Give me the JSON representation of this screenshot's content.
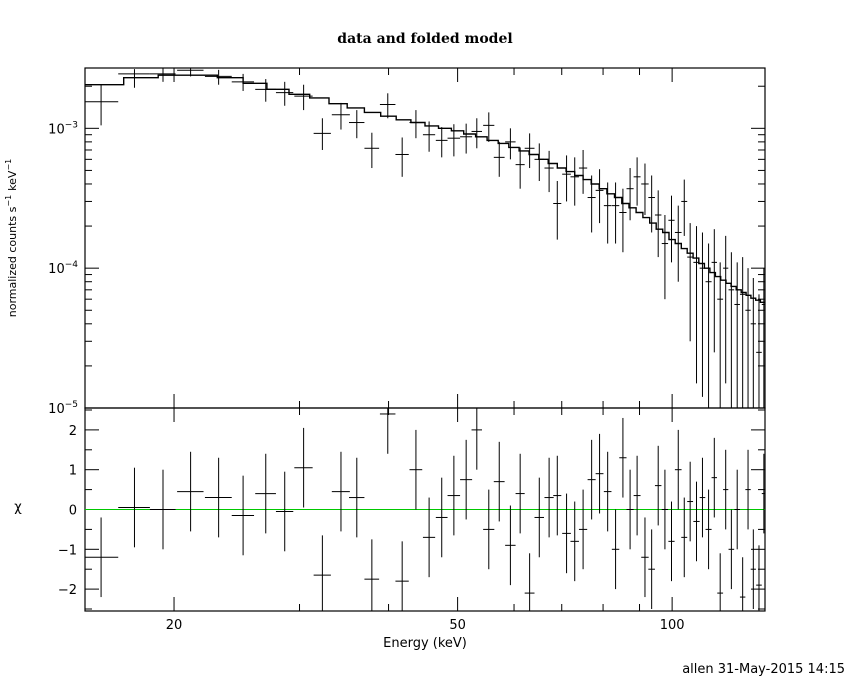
{
  "footer": "allen 31-May-2015 14:15",
  "colors": {
    "zero_line": "#00c800",
    "data": "#000000",
    "model": "#000000"
  },
  "chart_data": [
    {
      "type": "scatter",
      "title": "data and folded model",
      "xlabel": "",
      "ylabel": "normalized counts s",
      "ylabel_exponent": "−1",
      "ylabel_unit": "keV",
      "ylabel_unit_exponent": "−1",
      "xscale": "log",
      "yscale": "log",
      "xlim": [
        15.0,
        135.0
      ],
      "ylim": [
        1e-05,
        0.0027
      ],
      "y_ticks": [
        {
          "value": 0.001,
          "base": "10",
          "exp": "−3"
        },
        {
          "value": 0.0001,
          "base": "10",
          "exp": "−4"
        },
        {
          "value": 1e-05,
          "base": "10",
          "exp": "−5"
        }
      ],
      "series": [
        {
          "kind": "data",
          "x": [
            15.8,
            17.6,
            19.3,
            21.1,
            23.1,
            25.0,
            26.9,
            28.6,
            30.4,
            32.3,
            34.3,
            36.1,
            37.9,
            39.9,
            41.8,
            43.7,
            45.6,
            47.5,
            49.4,
            51.4,
            53.2,
            55.3,
            57.2,
            59.3,
            61.2,
            63.1,
            65.1,
            67.2,
            69.0,
            71.1,
            73.0,
            75.0,
            77.1,
            79.1,
            81.2,
            83.3,
            85.3,
            87.3,
            89.3,
            91.6,
            93.6,
            95.6,
            97.7,
            99.8,
            102.0,
            104.0,
            106.0,
            108.2,
            110.3,
            112.5,
            114.6,
            116.8,
            118.9,
            121.1,
            123.4,
            125.6,
            127.8,
            130.0,
            132.4,
            134.5
          ],
          "xerr": [
            0.9,
            0.9,
            0.8,
            0.9,
            1.0,
            0.9,
            0.9,
            0.8,
            0.9,
            0.9,
            1.0,
            0.9,
            0.9,
            1.0,
            0.9,
            0.9,
            0.9,
            0.9,
            1.0,
            1.0,
            0.9,
            1.0,
            1.0,
            1.0,
            0.9,
            1.0,
            1.0,
            1.0,
            0.9,
            1.0,
            1.0,
            1.0,
            1.0,
            1.0,
            1.0,
            1.0,
            1.0,
            1.0,
            1.0,
            1.1,
            1.0,
            1.0,
            1.0,
            1.0,
            1.1,
            1.0,
            1.0,
            1.1,
            1.0,
            1.1,
            1.0,
            1.1,
            1.0,
            1.1,
            1.1,
            1.1,
            1.1,
            1.1,
            1.2,
            0.9
          ],
          "y": [
            0.00155,
            0.00245,
            0.00245,
            0.0026,
            0.00235,
            0.00215,
            0.0019,
            0.0018,
            0.0017,
            0.00092,
            0.00125,
            0.0011,
            0.00072,
            0.00148,
            0.00065,
            0.0011,
            0.0009,
            0.00082,
            0.00085,
            0.00087,
            0.00095,
            0.00105,
            0.00062,
            0.0008,
            0.00055,
            0.00072,
            0.0006,
            0.00052,
            0.00029,
            0.00047,
            0.00045,
            0.00052,
            0.00032,
            0.00036,
            0.00028,
            0.00028,
            0.00025,
            0.00037,
            0.00045,
            0.0004,
            0.00032,
            0.00024,
            0.00015,
            0.00022,
            0.00018,
            0.0003,
            0.00012,
            0.00011,
            0.0001,
            8e-05,
            0.00011,
            6e-05,
            0.0001,
            7e-05,
            5.5e-05,
            6.5e-05,
            5e-05,
            4e-05,
            2.5e-05,
            5.5e-05
          ],
          "ylo": [
            0.00105,
            0.00195,
            0.00215,
            0.00235,
            0.00205,
            0.00185,
            0.00155,
            0.00145,
            0.00135,
            0.0007,
            0.00098,
            0.00085,
            0.00052,
            0.00118,
            0.00045,
            0.00085,
            0.00068,
            0.00062,
            0.00063,
            0.00066,
            0.00072,
            0.0008,
            0.00045,
            0.0006,
            0.00037,
            0.00052,
            0.00042,
            0.00035,
            0.00016,
            0.0003,
            0.00028,
            0.00034,
            0.00018,
            0.00021,
            0.00015,
            0.00015,
            0.00013,
            0.00022,
            0.00028,
            0.00024,
            0.00018,
            0.00012,
            6e-05,
            0.00011,
            8e-05,
            0.00017,
            3e-05,
            1.5e-05,
            1.2e-05,
            1e-05,
            2.5e-05,
            1e-05,
            1.5e-05,
            1e-05,
            1e-05,
            1e-05,
            1e-05,
            1e-05,
            1e-05,
            1e-05
          ],
          "yhi": [
            0.00205,
            0.00265,
            0.0027,
            0.0027,
            0.00262,
            0.00245,
            0.00225,
            0.00215,
            0.00205,
            0.00118,
            0.00152,
            0.00135,
            0.00093,
            0.00178,
            0.00086,
            0.00135,
            0.00112,
            0.00102,
            0.00107,
            0.00108,
            0.00118,
            0.0013,
            0.0008,
            0.001,
            0.00073,
            0.00092,
            0.00078,
            0.00069,
            0.00042,
            0.00064,
            0.00062,
            0.0007,
            0.00046,
            0.00051,
            0.00041,
            0.00041,
            0.00037,
            0.00052,
            0.00062,
            0.00056,
            0.00046,
            0.00036,
            0.00024,
            0.00033,
            0.00028,
            0.00043,
            0.00021,
            0.0002,
            0.00018,
            0.00015,
            0.00019,
            0.00011,
            0.00017,
            0.00013,
            0.00011,
            0.00012,
            0.0001,
            8.5e-05,
            6.5e-05,
            0.0001
          ]
        },
        {
          "kind": "model",
          "x": [
            15.0,
            17.0,
            19.0,
            21.0,
            23.0,
            25.0,
            27.0,
            29.0,
            31.0,
            33.0,
            35.0,
            37.0,
            39.0,
            41.0,
            43.0,
            45.0,
            47.0,
            49.0,
            51.0,
            53.0,
            55.0,
            57.0,
            59.0,
            61.0,
            63.0,
            65.0,
            67.0,
            69.0,
            71.0,
            73.0,
            75.0,
            77.0,
            79.0,
            81.0,
            83.0,
            85.0,
            87.0,
            89.0,
            91.0,
            93.0,
            95.0,
            97.0,
            99.0,
            101.0,
            103.0,
            105.0,
            107.0,
            109.0,
            111.0,
            113.0,
            115.0,
            117.0,
            119.0,
            121.0,
            123.0,
            125.0,
            127.0,
            129.0,
            131.0,
            133.0,
            135.0
          ],
          "y": [
            0.00205,
            0.0023,
            0.0024,
            0.0024,
            0.0023,
            0.0021,
            0.0019,
            0.00175,
            0.00165,
            0.0015,
            0.0014,
            0.0013,
            0.00122,
            0.00115,
            0.0011,
            0.00104,
            0.001,
            0.00096,
            0.00091,
            0.00087,
            0.00082,
            0.00078,
            0.00073,
            0.00069,
            0.00065,
            0.0006,
            0.00056,
            0.00052,
            0.00049,
            0.00046,
            0.00043,
            0.0004,
            0.00037,
            0.00034,
            0.00032,
            0.00029,
            0.00027,
            0.00025,
            0.00023,
            0.00021,
            0.00019,
            0.00018,
            0.00016,
            0.00015,
            0.000138,
            0.000128,
            0.000118,
            0.000108,
            0.0001,
            9.3e-05,
            8.7e-05,
            8.2e-05,
            7.8e-05,
            7.4e-05,
            7e-05,
            6.7e-05,
            6.4e-05,
            6.1e-05,
            5.9e-05,
            5.7e-05,
            5.5e-05
          ]
        }
      ]
    },
    {
      "type": "scatter",
      "title": "",
      "xlabel": "Energy (keV)",
      "ylabel": "χ",
      "xscale": "log",
      "xlim": [
        15.0,
        135.0
      ],
      "ylim": [
        -2.55,
        2.55
      ],
      "x_ticks": [
        {
          "value": 20,
          "label": "20"
        },
        {
          "value": 50,
          "label": "50"
        },
        {
          "value": 100,
          "label": "100"
        }
      ],
      "y_ticks": [
        {
          "value": 2,
          "label": "2"
        },
        {
          "value": 1,
          "label": "1"
        },
        {
          "value": 0,
          "label": "0"
        },
        {
          "value": -1,
          "label": "−1"
        },
        {
          "value": -2,
          "label": "−2"
        }
      ],
      "zero_line": 0,
      "series": [
        {
          "kind": "residuals",
          "x": [
            15.8,
            17.6,
            19.3,
            21.1,
            23.1,
            25.0,
            26.9,
            28.6,
            30.4,
            32.3,
            34.3,
            36.1,
            37.9,
            39.9,
            41.8,
            43.7,
            45.6,
            47.5,
            49.4,
            51.4,
            53.2,
            55.3,
            57.2,
            59.3,
            61.2,
            63.1,
            65.1,
            67.2,
            69.0,
            71.1,
            73.0,
            75.0,
            77.1,
            79.1,
            81.2,
            83.3,
            85.3,
            87.3,
            89.3,
            91.6,
            93.6,
            95.6,
            97.7,
            99.8,
            102.0,
            104.0,
            106.0,
            108.2,
            110.3,
            112.5,
            114.6,
            116.8,
            118.9,
            121.1,
            123.4,
            125.6,
            127.8,
            130.0,
            132.4,
            134.5
          ],
          "xerr": [
            0.9,
            0.9,
            0.8,
            0.9,
            1.0,
            0.9,
            0.9,
            0.8,
            0.9,
            0.9,
            1.0,
            0.9,
            0.9,
            1.0,
            0.9,
            0.9,
            0.9,
            0.9,
            1.0,
            1.0,
            0.9,
            1.0,
            1.0,
            1.0,
            0.9,
            1.0,
            1.0,
            1.0,
            0.9,
            1.0,
            1.0,
            1.0,
            1.0,
            1.0,
            1.0,
            1.0,
            1.0,
            1.0,
            1.0,
            1.1,
            1.0,
            1.0,
            1.0,
            1.0,
            1.1,
            1.0,
            1.0,
            1.1,
            1.0,
            1.1,
            1.0,
            1.1,
            1.0,
            1.1,
            1.1,
            1.1,
            1.1,
            1.1,
            1.2,
            0.9
          ],
          "y": [
            -1.2,
            0.05,
            0.0,
            0.45,
            0.3,
            -0.15,
            0.4,
            -0.05,
            1.05,
            -1.65,
            0.45,
            0.3,
            -1.75,
            2.4,
            -1.8,
            1.0,
            -0.7,
            -0.2,
            0.35,
            0.75,
            2.0,
            -0.5,
            0.7,
            -0.9,
            0.4,
            -2.1,
            -0.2,
            0.3,
            0.35,
            -0.6,
            -0.8,
            -0.5,
            0.75,
            0.9,
            0.45,
            -1.0,
            1.3,
            0.0,
            0.35,
            -1.2,
            -1.5,
            0.6,
            0.0,
            -0.8,
            1.0,
            -0.7,
            0.2,
            -0.3,
            0.3,
            -0.5,
            0.8,
            -2.1,
            0.5,
            -1.0,
            0.0,
            -2.2,
            0.5,
            -1.5,
            -1.9,
            0.4
          ],
          "yerr": [
            1.0,
            1.0,
            1.0,
            1.0,
            1.0,
            1.0,
            1.0,
            1.0,
            1.0,
            1.0,
            1.0,
            1.0,
            1.0,
            1.0,
            1.0,
            1.0,
            1.0,
            1.0,
            1.0,
            1.0,
            1.0,
            1.0,
            1.0,
            1.0,
            1.0,
            1.0,
            1.0,
            1.0,
            1.0,
            1.0,
            1.0,
            1.0,
            1.0,
            1.0,
            1.0,
            1.0,
            1.0,
            1.0,
            1.0,
            1.0,
            1.0,
            1.0,
            1.0,
            1.0,
            1.0,
            1.0,
            1.0,
            1.0,
            1.0,
            1.0,
            1.0,
            1.0,
            1.0,
            1.0,
            1.0,
            1.0,
            1.0,
            1.0,
            1.0,
            1.0
          ]
        }
      ]
    }
  ]
}
